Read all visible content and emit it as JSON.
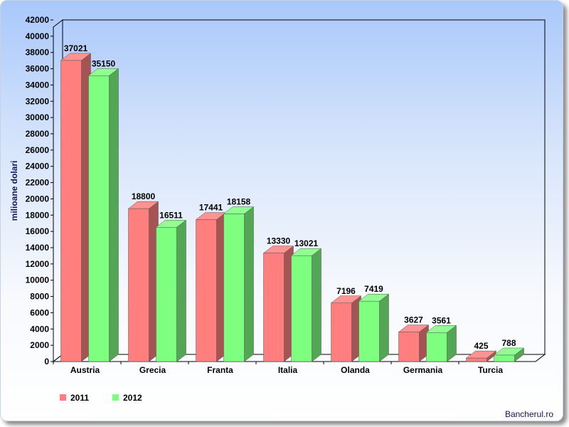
{
  "chart_data": {
    "type": "bar",
    "ylabel": "milioane dolari",
    "ylim": [
      0,
      42000
    ],
    "ytick_step": 2000,
    "yticks": [
      "0",
      "2000",
      "4000",
      "6000",
      "8000",
      "10000",
      "12000",
      "14000",
      "16000",
      "18000",
      "20000",
      "22000",
      "24000",
      "26000",
      "28000",
      "30000",
      "32000",
      "34000",
      "36000",
      "38000",
      "40000",
      "42000"
    ],
    "categories": [
      "Austria",
      "Grecia",
      "Franta",
      "Italia",
      "Olanda",
      "Germania",
      "Turcia"
    ],
    "series": [
      {
        "name": "2011",
        "color": "#ff7f7f",
        "values": [
          37021,
          18800,
          17441,
          13330,
          7196,
          3627,
          425
        ]
      },
      {
        "name": "2012",
        "color": "#7fff7f",
        "values": [
          35150,
          16511,
          18158,
          13021,
          7419,
          3561,
          788
        ]
      }
    ],
    "legend": "bottom-left",
    "grid": false
  },
  "credit": "Bancherul.ro"
}
